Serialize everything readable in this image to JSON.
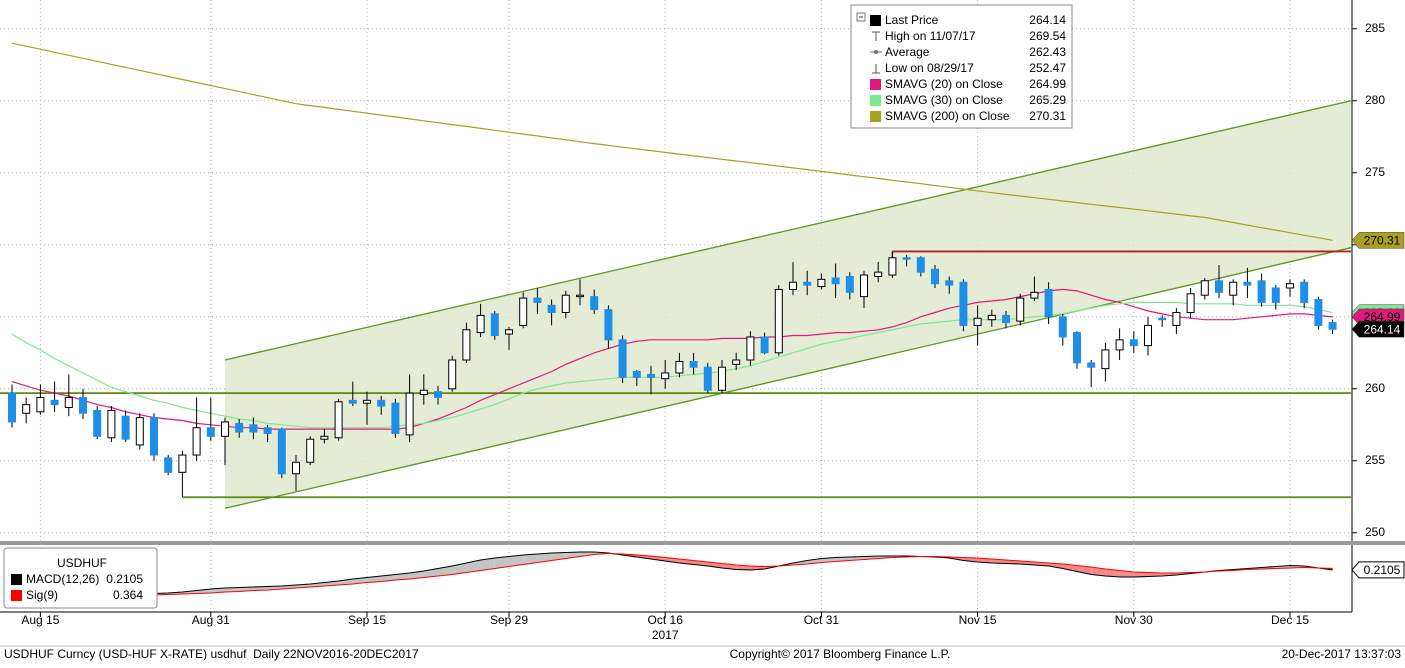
{
  "chart_data": [
    {
      "type": "candlestick",
      "categories": [
        null,
        null,
        "Aug 15",
        null,
        null,
        null,
        null,
        null,
        null,
        null,
        null,
        null,
        null,
        null,
        "Aug 31",
        null,
        null,
        null,
        null,
        null,
        null,
        null,
        null,
        null,
        null,
        "Sep 15",
        null,
        null,
        null,
        null,
        null,
        null,
        null,
        null,
        null,
        "Sep 29",
        null,
        null,
        null,
        null,
        null,
        null,
        null,
        null,
        null,
        null,
        "Oct 16",
        null,
        null,
        null,
        null,
        null,
        null,
        null,
        null,
        null,
        null,
        "Oct 31",
        null,
        null,
        null,
        null,
        null,
        null,
        null,
        null,
        null,
        null,
        "Nov 15",
        null,
        null,
        null,
        null,
        null,
        null,
        null,
        null,
        null,
        null,
        "Nov 30",
        null,
        null,
        null,
        null,
        null,
        null,
        null,
        null,
        null,
        null,
        "Dec 15",
        null,
        null,
        null
      ],
      "x_group_label": "2017",
      "open": [
        259.7,
        258.3,
        258.4,
        259.2,
        258.7,
        259.4,
        258.5,
        256.6,
        258.1,
        256.1,
        258.0,
        255.2,
        254.2,
        255.4,
        257.3,
        256.7,
        257.6,
        257.5,
        257.3,
        257.2,
        254.1,
        254.9,
        256.5,
        256.6,
        259.2,
        259.0,
        259.2,
        259.0,
        256.8,
        259.6,
        259.8,
        260.0,
        262.0,
        263.9,
        265.2,
        263.8,
        264.4,
        266.3,
        265.8,
        265.3,
        266.4,
        266.4,
        265.5,
        263.4,
        261.2,
        261.0,
        260.7,
        261.1,
        261.9,
        261.5,
        259.9,
        261.7,
        262.0,
        263.6,
        262.5,
        266.9,
        267.4,
        267.1,
        267.7,
        267.8,
        266.4,
        267.8,
        267.9,
        269.1,
        269.1,
        268.3,
        267.5,
        267.4,
        264.4,
        264.8,
        265.1,
        264.7,
        266.3,
        266.9,
        265.0,
        263.9,
        261.8,
        261.4,
        262.7,
        263.4,
        263.0,
        264.9,
        264.4,
        265.3,
        266.5,
        267.5,
        266.5,
        267.4,
        267.5,
        267.0,
        267.0,
        267.4,
        266.2,
        264.6
      ],
      "high": [
        260.3,
        259.4,
        260.3,
        260.5,
        261.0,
        260.0,
        258.8,
        258.8,
        258.5,
        258.3,
        258.3,
        255.4,
        255.7,
        259.4,
        259.4,
        258.0,
        257.9,
        258.0,
        257.5,
        257.3,
        255.4,
        256.7,
        257.2,
        259.3,
        260.5,
        259.8,
        259.5,
        259.3,
        261.0,
        261.0,
        260.2,
        262.3,
        264.6,
        265.9,
        265.4,
        264.3,
        266.7,
        267.0,
        266.2,
        266.8,
        267.6,
        266.9,
        265.8,
        263.7,
        261.3,
        261.6,
        262.0,
        262.5,
        262.5,
        261.8,
        262.0,
        262.5,
        264.0,
        263.9,
        267.2,
        268.8,
        268.2,
        268.0,
        268.7,
        268.1,
        268.2,
        268.8,
        269.54,
        269.3,
        269.2,
        268.6,
        267.8,
        267.6,
        265.8,
        265.5,
        265.4,
        266.6,
        267.8,
        267.4,
        265.2,
        264.0,
        262.0,
        263.2,
        264.2,
        264.0,
        265.0,
        265.1,
        265.6,
        267.0,
        267.7,
        268.6,
        267.6,
        268.4,
        268.0,
        267.2,
        267.6,
        267.6,
        266.4,
        264.8
      ],
      "low": [
        257.3,
        257.6,
        258.2,
        258.4,
        258.1,
        257.9,
        256.5,
        256.3,
        256.3,
        255.8,
        255.0,
        254.0,
        252.47,
        255.0,
        256.4,
        254.7,
        256.6,
        256.5,
        256.3,
        253.8,
        252.9,
        254.7,
        256.2,
        256.4,
        258.8,
        257.5,
        258.2,
        256.6,
        256.3,
        258.9,
        258.9,
        259.8,
        261.8,
        263.6,
        263.4,
        262.7,
        264.2,
        265.2,
        264.4,
        264.9,
        265.8,
        265.2,
        262.8,
        260.4,
        260.2,
        259.6,
        260.0,
        260.8,
        261.0,
        259.7,
        259.7,
        261.3,
        261.6,
        262.4,
        262.3,
        266.5,
        266.5,
        266.9,
        266.3,
        266.2,
        265.6,
        267.4,
        267.7,
        268.5,
        267.8,
        267.0,
        266.6,
        264.0,
        263.0,
        264.3,
        264.2,
        264.4,
        266.1,
        264.5,
        263.0,
        261.4,
        260.1,
        260.5,
        262.0,
        262.5,
        262.3,
        264.3,
        263.8,
        264.9,
        266.2,
        266.3,
        265.8,
        266.3,
        265.7,
        265.5,
        266.4,
        265.6,
        264.1,
        263.8
      ],
      "close": [
        257.7,
        258.9,
        259.4,
        258.9,
        259.4,
        258.3,
        256.7,
        258.5,
        256.5,
        258.0,
        255.4,
        254.2,
        255.4,
        257.3,
        256.7,
        257.7,
        257.0,
        257.0,
        256.9,
        254.1,
        254.9,
        256.5,
        256.7,
        259.1,
        259.0,
        259.2,
        258.8,
        256.9,
        259.7,
        259.9,
        259.4,
        262.0,
        264.1,
        265.1,
        263.7,
        264.1,
        266.3,
        266.0,
        265.3,
        266.5,
        266.5,
        265.5,
        263.4,
        260.8,
        260.8,
        260.8,
        261.1,
        261.9,
        261.5,
        259.9,
        261.5,
        262.0,
        263.6,
        262.5,
        266.9,
        267.4,
        267.2,
        267.6,
        267.3,
        266.7,
        267.9,
        268.1,
        269.1,
        269.0,
        268.1,
        267.3,
        267.2,
        264.4,
        264.9,
        265.1,
        264.6,
        266.3,
        266.7,
        265.0,
        263.6,
        261.8,
        261.5,
        262.7,
        263.4,
        263.0,
        264.4,
        264.8,
        265.3,
        266.6,
        267.5,
        266.7,
        267.4,
        267.2,
        266.0,
        266.0,
        267.3,
        266.0,
        264.4,
        264.14
      ],
      "up_color": "#ffffff",
      "down_color": "#1e8fe8",
      "ylim": [
        249.5,
        287
      ],
      "yticks": [
        250,
        255,
        260,
        265,
        270,
        275,
        280,
        285
      ],
      "grid": true,
      "series": [
        {
          "name": "SMAVG (20) on Close",
          "color": "#e0197f",
          "text_color": "#000000",
          "values": [
            260.5,
            260.2,
            259.9,
            259.7,
            259.5,
            259.2,
            258.9,
            258.7,
            258.4,
            258.2,
            258.0,
            257.9,
            257.8,
            257.6,
            257.5,
            257.4,
            257.3,
            257.3,
            257.2,
            257.2,
            257.2,
            257.2,
            257.2,
            257.2,
            257.2,
            257.2,
            257.2,
            257.2,
            257.3,
            257.6,
            257.9,
            258.3,
            258.7,
            259.2,
            259.6,
            260.0,
            260.4,
            260.8,
            261.2,
            261.7,
            262.1,
            262.5,
            262.8,
            263.1,
            263.3,
            263.4,
            263.4,
            263.4,
            263.4,
            263.4,
            263.5,
            263.5,
            263.5,
            263.6,
            263.6,
            263.7,
            263.7,
            263.8,
            263.9,
            263.9,
            264.0,
            264.1,
            264.3,
            264.6,
            265.0,
            265.3,
            265.6,
            265.8,
            266.0,
            266.1,
            266.2,
            266.4,
            266.6,
            266.8,
            266.9,
            266.8,
            266.5,
            266.2,
            266.0,
            265.7,
            265.4,
            265.2,
            265.0,
            264.9,
            264.8,
            264.8,
            264.8,
            264.9,
            265.0,
            265.1,
            265.2,
            265.2,
            265.1,
            264.99
          ]
        },
        {
          "name": "SMAVG (30) on Close",
          "color": "#7fe88f",
          "text_color": "#000000",
          "values": [
            263.8,
            263.2,
            262.7,
            262.1,
            261.6,
            261.1,
            260.6,
            260.1,
            259.8,
            259.5,
            259.2,
            259.0,
            258.7,
            258.5,
            258.3,
            258.1,
            257.9,
            257.8,
            257.6,
            257.5,
            257.4,
            257.3,
            257.3,
            257.3,
            257.3,
            257.3,
            257.3,
            257.4,
            257.5,
            257.6,
            257.8,
            258.0,
            258.3,
            258.6,
            258.9,
            259.3,
            259.7,
            260.0,
            260.2,
            260.4,
            260.5,
            260.6,
            260.7,
            260.8,
            260.8,
            260.8,
            260.8,
            260.9,
            261.0,
            261.1,
            261.2,
            261.4,
            261.6,
            261.9,
            262.2,
            262.5,
            262.8,
            263.1,
            263.3,
            263.5,
            263.7,
            263.9,
            264.1,
            264.3,
            264.5,
            264.6,
            264.7,
            264.8,
            264.8,
            264.8,
            264.8,
            264.9,
            265.0,
            265.1,
            265.2,
            265.4,
            265.6,
            265.8,
            265.9,
            266.0,
            266.0,
            266.0,
            266.0,
            265.9,
            265.9,
            265.9,
            265.9,
            265.8,
            265.8,
            265.8,
            265.8,
            265.7,
            265.5,
            265.29
          ]
        },
        {
          "name": "SMAVG (200) on Close",
          "color": "#aaa020",
          "text_color": "#000000",
          "values": [
            284.0,
            283.79,
            283.58,
            283.37,
            283.16,
            282.95,
            282.74,
            282.53,
            282.32,
            282.11,
            281.9,
            281.69,
            281.48,
            281.27,
            281.06,
            280.85,
            280.64,
            280.43,
            280.22,
            280.01,
            279.8,
            279.67,
            279.54,
            279.4,
            279.27,
            279.14,
            279.01,
            278.88,
            278.74,
            278.61,
            278.48,
            278.35,
            278.22,
            278.08,
            277.95,
            277.82,
            277.69,
            277.56,
            277.42,
            277.29,
            277.16,
            277.03,
            276.9,
            276.78,
            276.66,
            276.54,
            276.42,
            276.3,
            276.18,
            276.06,
            275.94,
            275.82,
            275.7,
            275.58,
            275.46,
            275.34,
            275.22,
            275.1,
            274.98,
            274.85,
            274.73,
            274.61,
            274.48,
            274.36,
            274.24,
            274.11,
            273.99,
            273.87,
            273.75,
            273.62,
            273.5,
            273.39,
            273.27,
            273.16,
            273.04,
            272.93,
            272.81,
            272.7,
            272.59,
            272.47,
            272.36,
            272.24,
            272.13,
            272.01,
            271.9,
            271.72,
            271.55,
            271.37,
            271.19,
            271.02,
            270.84,
            270.66,
            270.49,
            270.31
          ]
        }
      ],
      "last_color": "#000000",
      "summary": [
        {
          "label": "Last Price",
          "value": 264.14
        },
        {
          "label": "High on 11/07/17",
          "value": 269.54
        },
        {
          "label": "Average",
          "value": 262.43
        },
        {
          "label": "Low on 08/29/17",
          "value": 252.47
        }
      ],
      "channel": {
        "color": "#5f9420",
        "fill": "#dfe9cf",
        "x": [
          15,
          94.3
        ],
        "upper": [
          262.0,
          280.0
        ],
        "lower": [
          251.7,
          269.8
        ]
      },
      "levels": [
        {
          "y": 259.7,
          "x": [
            -0.85,
            94.3
          ],
          "color": "#5a8a10"
        },
        {
          "y": 252.47,
          "x": [
            12,
            94.3
          ],
          "color": "#5a8a10"
        },
        {
          "y": 269.54,
          "x": [
            62,
            94.3
          ],
          "color": "#b22222"
        }
      ]
    },
    {
      "type": "macd",
      "title": "USDHUF",
      "ylim": [
        -4,
        2.4
      ],
      "fill_above": "#c4c4c4",
      "fill_below": "#f28a8a",
      "series": [
        {
          "name": "MACD(12,26)",
          "color": "#000000",
          "values": [
            -1.9,
            -1.95,
            -2.0,
            -2.0,
            -2.05,
            -2.1,
            -2.15,
            -2.2,
            -2.2,
            -2.2,
            -2.15,
            -2.1,
            -2.0,
            -1.85,
            -1.7,
            -1.6,
            -1.55,
            -1.5,
            -1.45,
            -1.4,
            -1.3,
            -1.2,
            -1.05,
            -0.9,
            -0.7,
            -0.55,
            -0.4,
            -0.25,
            -0.1,
            0.1,
            0.35,
            0.6,
            0.9,
            1.2,
            1.4,
            1.55,
            1.7,
            1.8,
            1.9,
            1.95,
            2.0,
            2.0,
            1.9,
            1.7,
            1.5,
            1.3,
            1.1,
            0.9,
            0.75,
            0.6,
            0.4,
            0.25,
            0.2,
            0.3,
            0.6,
            0.9,
            1.15,
            1.35,
            1.45,
            1.5,
            1.55,
            1.6,
            1.6,
            1.6,
            1.55,
            1.5,
            1.4,
            1.15,
            1.0,
            0.9,
            0.85,
            0.8,
            0.7,
            0.6,
            0.35,
            0.05,
            -0.25,
            -0.4,
            -0.5,
            -0.5,
            -0.45,
            -0.4,
            -0.3,
            -0.15,
            0.0,
            0.15,
            0.25,
            0.35,
            0.45,
            0.55,
            0.65,
            0.6,
            0.4,
            0.2105
          ]
        },
        {
          "name": "Sig(9)",
          "color": "#ff0000",
          "values": [
            -2.8,
            -2.75,
            -2.7,
            -2.65,
            -2.6,
            -2.55,
            -2.5,
            -2.45,
            -2.4,
            -2.35,
            -2.3,
            -2.25,
            -2.2,
            -2.15,
            -2.1,
            -2.0,
            -1.95,
            -1.85,
            -1.8,
            -1.7,
            -1.6,
            -1.5,
            -1.4,
            -1.3,
            -1.2,
            -1.05,
            -0.95,
            -0.8,
            -0.7,
            -0.55,
            -0.4,
            -0.25,
            -0.05,
            0.15,
            0.35,
            0.55,
            0.75,
            0.95,
            1.15,
            1.35,
            1.55,
            1.75,
            1.85,
            1.8,
            1.7,
            1.6,
            1.45,
            1.3,
            1.15,
            1.0,
            0.85,
            0.7,
            0.6,
            0.55,
            0.6,
            0.7,
            0.8,
            0.95,
            1.05,
            1.15,
            1.25,
            1.35,
            1.45,
            1.5,
            1.55,
            1.55,
            1.5,
            1.45,
            1.4,
            1.3,
            1.2,
            1.1,
            1.0,
            0.9,
            0.8,
            0.65,
            0.5,
            0.3,
            0.15,
            0.0,
            -0.05,
            -0.1,
            -0.1,
            -0.05,
            0.0,
            0.1,
            0.15,
            0.25,
            0.3,
            0.35,
            0.4,
            0.45,
            0.4,
            0.364
          ]
        }
      ]
    }
  ],
  "footer": {
    "left": "USDHUF Curncy (USD-HUF X-RATE) usdhuf  Daily 22NOV2016-20DEC2017",
    "center": "Copyright© 2017 Bloomberg Finance L.P.",
    "right": "20-Dec-2017 13:37:03"
  }
}
